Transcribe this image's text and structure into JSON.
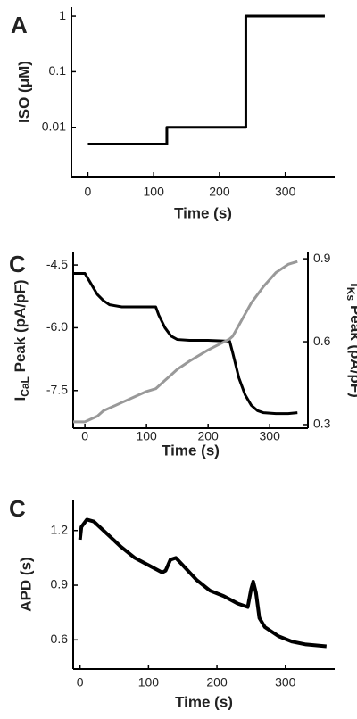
{
  "chart_data": [
    {
      "type": "line",
      "panel_label": "A",
      "xlabel": "Time (s)",
      "ylabel": "ISO (μM)",
      "y_scale": "log",
      "xlim": [
        -25,
        375
      ],
      "ylim": [
        0.0013,
        1.45
      ],
      "xticks": [
        0,
        100,
        200,
        300
      ],
      "yticks": [
        0.01,
        0.1,
        1
      ],
      "frame": [
        "left",
        "bottom"
      ],
      "x": [
        0,
        120,
        120,
        240,
        240,
        360
      ],
      "series": [
        {
          "color": "#000000",
          "values": [
            0.005,
            0.005,
            0.01,
            0.01,
            1,
            1
          ]
        }
      ]
    },
    {
      "type": "line",
      "panel_label": "C",
      "xlabel": "Time (s)",
      "ylabel_parts": [
        "I",
        "CaL",
        " Peak (pA/pF)"
      ],
      "y2label_parts": [
        "I",
        "Ks",
        " Peak (pA/pF)"
      ],
      "y2color": "#999999",
      "xlim": [
        -19,
        362
      ],
      "ylim": [
        -8.4,
        -4.2
      ],
      "y2lim": [
        0.287,
        0.923
      ],
      "xticks": [
        0,
        100,
        200,
        300
      ],
      "yticks": [
        {
          "value": -7.5,
          "label": "-7.5"
        },
        {
          "value": -6.0,
          "label": "-6.0"
        },
        {
          "value": -4.5,
          "label": "-4.5"
        }
      ],
      "y2ticks": [
        0.3,
        0.6,
        0.9
      ],
      "frame": [
        "left",
        "bottom",
        "right"
      ],
      "x": [
        -19,
        0,
        10,
        20,
        30,
        40,
        60,
        80,
        100,
        115,
        120,
        130,
        140,
        150,
        170,
        200,
        235,
        240,
        250,
        260,
        270,
        280,
        290,
        310,
        330,
        345
      ],
      "series": [
        {
          "color": "#000000",
          "values": [
            -4.7,
            -4.7,
            -4.95,
            -5.2,
            -5.35,
            -5.45,
            -5.5,
            -5.5,
            -5.5,
            -5.5,
            -5.7,
            -6.0,
            -6.2,
            -6.28,
            -6.3,
            -6.3,
            -6.32,
            -6.6,
            -7.2,
            -7.6,
            -7.85,
            -7.98,
            -8.03,
            -8.05,
            -8.05,
            -8.03
          ]
        },
        {
          "color": "#999999",
          "axis": "y2",
          "values": [
            0.31,
            0.31,
            0.32,
            0.33,
            0.35,
            0.36,
            0.38,
            0.4,
            0.42,
            0.43,
            0.44,
            0.46,
            0.48,
            0.5,
            0.53,
            0.57,
            0.61,
            0.62,
            0.66,
            0.7,
            0.74,
            0.77,
            0.8,
            0.85,
            0.88,
            0.89
          ]
        }
      ]
    },
    {
      "type": "line",
      "panel_label": "C",
      "xlabel": "Time (s)",
      "ylabel": "APD (s)",
      "xlim": [
        -10,
        372
      ],
      "ylim": [
        0.44,
        1.37
      ],
      "xticks": [
        0,
        100,
        200,
        300
      ],
      "yticks": [
        0.6,
        0.9,
        1.2
      ],
      "frame": [
        "left",
        "bottom"
      ],
      "x": [
        0,
        2,
        10,
        20,
        40,
        60,
        80,
        100,
        120,
        125,
        132,
        140,
        150,
        170,
        190,
        210,
        230,
        245,
        250,
        253,
        257,
        262,
        270,
        290,
        310,
        330,
        360
      ],
      "series": [
        {
          "color": "#000000",
          "values": [
            1.15,
            1.22,
            1.26,
            1.25,
            1.18,
            1.11,
            1.05,
            1.01,
            0.97,
            0.98,
            1.04,
            1.05,
            1.01,
            0.93,
            0.87,
            0.84,
            0.8,
            0.78,
            0.88,
            0.92,
            0.86,
            0.72,
            0.67,
            0.62,
            0.59,
            0.575,
            0.565
          ]
        }
      ]
    }
  ]
}
